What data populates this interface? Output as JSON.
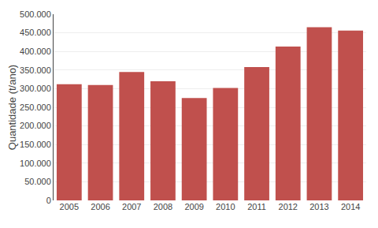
{
  "chart_data": {
    "type": "bar",
    "categories": [
      "2005",
      "2006",
      "2007",
      "2008",
      "2009",
      "2010",
      "2011",
      "2012",
      "2013",
      "2014"
    ],
    "values": [
      312000,
      310000,
      345000,
      320000,
      275000,
      302000,
      358000,
      413000,
      465000,
      456000
    ],
    "color": "#C0504D",
    "ylabel": "Quantidade (t/ano)",
    "ylim": [
      0,
      500000
    ],
    "yticks": [
      0,
      {
        "value": 50000,
        "label": "50.000"
      },
      {
        "value": 100000,
        "label": "100.000"
      },
      {
        "value": 150000,
        "label": "150.000"
      },
      {
        "value": 200000,
        "label": "200.000"
      },
      {
        "value": 250000,
        "label": "250.000"
      },
      {
        "value": 300000,
        "label": "300.000"
      },
      {
        "value": 350000,
        "label": "350.000"
      },
      {
        "value": 400000,
        "label": "400.000"
      },
      {
        "value": 450000,
        "label": "450.000"
      },
      {
        "value": 500000,
        "label": "500.000"
      }
    ],
    "grid": true
  }
}
